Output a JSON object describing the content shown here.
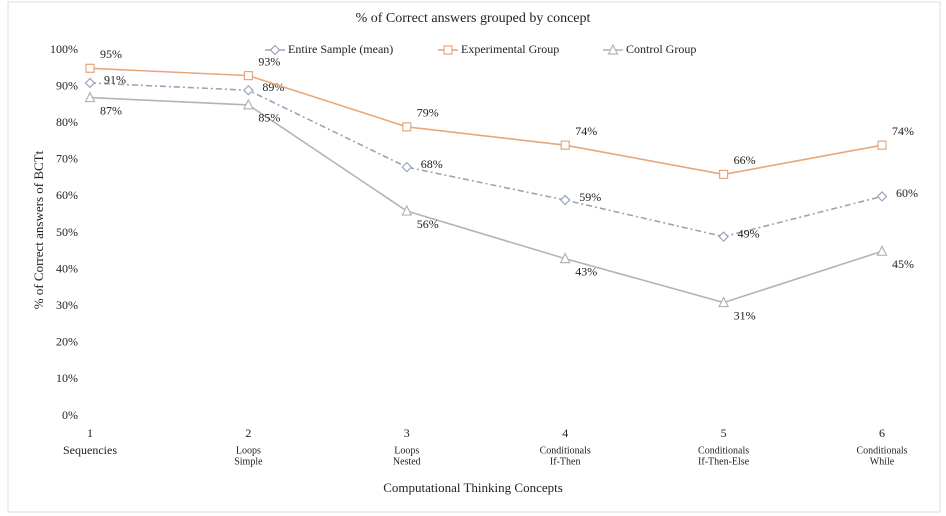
{
  "chart_data": {
    "type": "line",
    "title": "% of Correct answers grouped by concept",
    "x_label": "Computational Thinking Concepts",
    "y_label": "% of Correct answers  of BCTt",
    "categories": [
      [
        "1",
        "Sequencies"
      ],
      [
        "2",
        "Loops",
        "Simple"
      ],
      [
        "3",
        "Loops",
        "Nested"
      ],
      [
        "4",
        "Conditionals",
        "If-Then"
      ],
      [
        "5",
        "Conditionals",
        "If-Then-Else"
      ],
      [
        "6",
        "Conditionals",
        "While"
      ]
    ],
    "series": [
      {
        "name": "Entire Sample (mean)",
        "color": "#9aa4b8",
        "marker": "diamond",
        "dash": "dashdot",
        "values": [
          91,
          89,
          68,
          59,
          49,
          60
        ],
        "value_labels": [
          "91%",
          "89%",
          "68%",
          "59%",
          "49%",
          "60%"
        ]
      },
      {
        "name": "Experimental Group",
        "color": "#e8a67a",
        "marker": "square",
        "dash": "solid",
        "values": [
          95,
          93,
          79,
          74,
          66,
          74
        ],
        "value_labels": [
          "95%",
          "93%",
          "79%",
          "74%",
          "66%",
          "74%"
        ]
      },
      {
        "name": "Control Group",
        "color": "#b4b4b4",
        "marker": "triangle",
        "dash": "solid",
        "values": [
          87,
          85,
          56,
          43,
          31,
          45
        ],
        "value_labels": [
          "87%",
          "85%",
          "56%",
          "43%",
          "31%",
          "45%"
        ]
      }
    ],
    "ylim": [
      0,
      100
    ],
    "yticks": [
      {
        "value": 0,
        "label": "0%"
      },
      {
        "value": 10,
        "label": "10%"
      },
      {
        "value": 20,
        "label": "20%"
      },
      {
        "value": 30,
        "label": "30%"
      },
      {
        "value": 40,
        "label": "40%"
      },
      {
        "value": 50,
        "label": "50%"
      },
      {
        "value": 60,
        "label": "60%"
      },
      {
        "value": 70,
        "label": "70%"
      },
      {
        "value": 80,
        "label": "80%"
      },
      {
        "value": 90,
        "label": "90%"
      },
      {
        "value": 100,
        "label": "100%"
      }
    ],
    "grid": false,
    "legend": "top"
  }
}
